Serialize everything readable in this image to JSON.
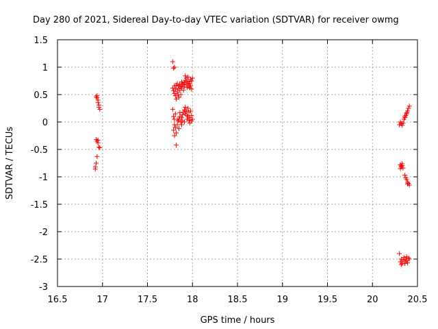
{
  "chart_data": {
    "type": "scatter",
    "title": "Day 280 of 2021, Sidereal Day-to-day VTEC variation (SDTVAR) for receiver owmg",
    "xlabel": "GPS time / hours",
    "ylabel": "SDTVAR / TECUs",
    "xlim": [
      16.5,
      20.5
    ],
    "ylim": [
      -3,
      1.5
    ],
    "xticks": [
      16.5,
      17,
      17.5,
      18,
      18.5,
      19,
      19.5,
      20,
      20.5
    ],
    "xtick_labels": [
      "16.5",
      "17",
      "17.5",
      "18",
      "18.5",
      "19",
      "19.5",
      "20",
      "20.5"
    ],
    "yticks": [
      -3,
      -2.5,
      -2,
      -1.5,
      -1,
      -0.5,
      0,
      0.5,
      1,
      1.5
    ],
    "ytick_labels": [
      "-3",
      "-2.5",
      "-2",
      "-1.5",
      "-1",
      "-0.5",
      "0",
      "0.5",
      "1",
      "1.5"
    ],
    "grid": true,
    "marker": "+",
    "color": "#ff0000",
    "series": [
      {
        "name": "SDTVAR",
        "points": [
          [
            16.93,
            0.46
          ],
          [
            16.94,
            0.44
          ],
          [
            16.95,
            0.4
          ],
          [
            16.95,
            0.36
          ],
          [
            16.96,
            0.31
          ],
          [
            16.96,
            0.27
          ],
          [
            16.97,
            0.23
          ],
          [
            16.94,
            0.48
          ],
          [
            16.93,
            -0.32
          ],
          [
            16.94,
            -0.35
          ],
          [
            16.95,
            -0.38
          ],
          [
            16.95,
            -0.33
          ],
          [
            16.96,
            -0.46
          ],
          [
            16.97,
            -0.47
          ],
          [
            16.94,
            -0.63
          ],
          [
            16.93,
            -0.75
          ],
          [
            16.92,
            -0.82
          ],
          [
            16.92,
            -0.86
          ],
          [
            17.78,
            1.1
          ],
          [
            17.79,
            0.98
          ],
          [
            17.8,
            1.0
          ],
          [
            17.78,
            0.62
          ],
          [
            17.79,
            0.57
          ],
          [
            17.8,
            0.52
          ],
          [
            17.81,
            0.48
          ],
          [
            17.82,
            0.42
          ],
          [
            17.83,
            0.55
          ],
          [
            17.84,
            0.61
          ],
          [
            17.85,
            0.66
          ],
          [
            17.86,
            0.58
          ],
          [
            17.87,
            0.5
          ],
          [
            17.88,
            0.62
          ],
          [
            17.89,
            0.7
          ],
          [
            17.9,
            0.68
          ],
          [
            17.91,
            0.72
          ],
          [
            17.92,
            0.76
          ],
          [
            17.93,
            0.8
          ],
          [
            17.94,
            0.74
          ],
          [
            17.95,
            0.69
          ],
          [
            17.96,
            0.65
          ],
          [
            17.97,
            0.7
          ],
          [
            17.98,
            0.78
          ],
          [
            17.99,
            0.75
          ],
          [
            17.83,
            0.7
          ],
          [
            17.85,
            0.45
          ],
          [
            17.8,
            0.66
          ],
          [
            17.86,
            0.68
          ],
          [
            17.9,
            0.58
          ],
          [
            17.92,
            0.84
          ],
          [
            17.95,
            0.82
          ],
          [
            17.97,
            0.62
          ],
          [
            17.99,
            0.6
          ],
          [
            18.0,
            0.8
          ],
          [
            17.81,
            0.6
          ],
          [
            17.87,
            0.64
          ],
          [
            17.94,
            0.63
          ],
          [
            17.82,
            0.67
          ],
          [
            17.88,
            0.73
          ],
          [
            17.96,
            0.74
          ],
          [
            17.84,
            0.5
          ],
          [
            17.91,
            0.65
          ],
          [
            17.93,
            0.69
          ],
          [
            17.98,
            0.66
          ],
          [
            17.78,
            0.23
          ],
          [
            17.79,
            0.1
          ],
          [
            17.8,
            0.05
          ],
          [
            17.8,
            -0.05
          ],
          [
            17.81,
            -0.1
          ],
          [
            17.82,
            -0.2
          ],
          [
            17.83,
            -0.05
          ],
          [
            17.84,
            0.02
          ],
          [
            17.85,
            0.05
          ],
          [
            17.86,
            0.1
          ],
          [
            17.87,
            0.0
          ],
          [
            17.88,
            0.08
          ],
          [
            17.89,
            0.13
          ],
          [
            17.9,
            0.18
          ],
          [
            17.91,
            0.22
          ],
          [
            17.92,
            0.15
          ],
          [
            17.93,
            0.2
          ],
          [
            17.94,
            0.05
          ],
          [
            17.95,
            0.1
          ],
          [
            17.96,
            0.03
          ],
          [
            17.97,
            0.08
          ],
          [
            17.98,
            0.2
          ],
          [
            17.99,
            0.12
          ],
          [
            18.0,
            0.05
          ],
          [
            17.79,
            -0.15
          ],
          [
            17.81,
            0.15
          ],
          [
            17.85,
            -0.12
          ],
          [
            17.88,
            -0.05
          ],
          [
            17.91,
            0.0
          ],
          [
            17.95,
            0.25
          ],
          [
            17.97,
            -0.02
          ],
          [
            17.99,
            0.02
          ],
          [
            17.82,
            -0.42
          ],
          [
            17.8,
            -0.25
          ],
          [
            17.86,
            0.17
          ],
          [
            17.92,
            0.27
          ],
          [
            17.94,
            0.12
          ],
          [
            17.96,
            0.18
          ],
          [
            17.83,
            0.05
          ],
          [
            17.89,
            0.02
          ],
          [
            20.3,
            -0.05
          ],
          [
            20.31,
            0.0
          ],
          [
            20.32,
            -0.03
          ],
          [
            20.33,
            -0.06
          ],
          [
            20.34,
            -0.02
          ],
          [
            20.35,
            0.05
          ],
          [
            20.36,
            0.08
          ],
          [
            20.37,
            0.12
          ],
          [
            20.38,
            0.15
          ],
          [
            20.39,
            0.2
          ],
          [
            20.4,
            0.25
          ],
          [
            20.41,
            0.29
          ],
          [
            20.36,
            0.1
          ],
          [
            20.38,
            0.17
          ],
          [
            20.31,
            -0.78
          ],
          [
            20.32,
            -0.82
          ],
          [
            20.33,
            -0.76
          ],
          [
            20.32,
            -0.8
          ],
          [
            20.34,
            -0.84
          ],
          [
            20.31,
            -0.85
          ],
          [
            20.33,
            -0.79
          ],
          [
            20.36,
            -0.97
          ],
          [
            20.37,
            -1.02
          ],
          [
            20.38,
            -1.05
          ],
          [
            20.39,
            -1.1
          ],
          [
            20.4,
            -1.12
          ],
          [
            20.41,
            -1.15
          ],
          [
            20.39,
            -1.13
          ],
          [
            20.3,
            -2.4
          ],
          [
            20.31,
            -2.55
          ],
          [
            20.32,
            -2.5
          ],
          [
            20.33,
            -2.58
          ],
          [
            20.34,
            -2.52
          ],
          [
            20.35,
            -2.47
          ],
          [
            20.36,
            -2.55
          ],
          [
            20.37,
            -2.5
          ],
          [
            20.38,
            -2.53
          ],
          [
            20.39,
            -2.57
          ],
          [
            20.4,
            -2.48
          ],
          [
            20.41,
            -2.5
          ],
          [
            20.32,
            -2.6
          ],
          [
            20.36,
            -2.58
          ],
          [
            20.38,
            -2.46
          ]
        ]
      }
    ]
  }
}
